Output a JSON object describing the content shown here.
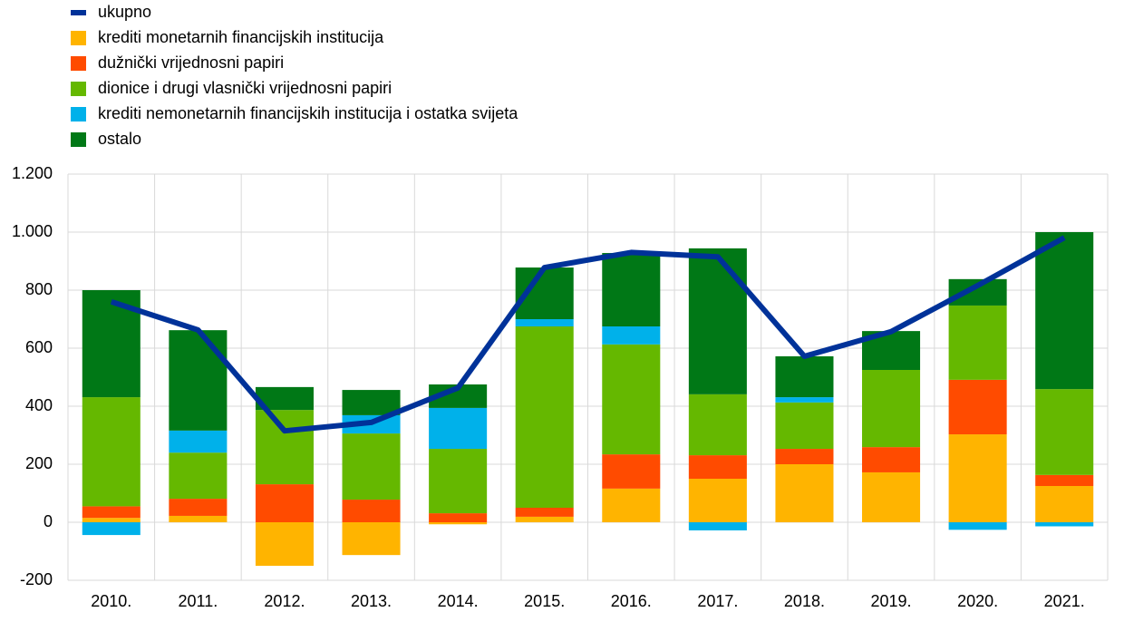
{
  "chart_data": {
    "type": "bar",
    "stacked": true,
    "grid": true,
    "legend": "top-left",
    "categories": [
      "2010.",
      "2011.",
      "2012.",
      "2013.",
      "2014.",
      "2015.",
      "2016.",
      "2017.",
      "2018.",
      "2019.",
      "2020.",
      "2021."
    ],
    "ylim": [
      -200,
      1200
    ],
    "yticks": [
      -200,
      0,
      200,
      400,
      600,
      800,
      {
        "value": 1000,
        "label": "1.000"
      },
      {
        "value": 1200,
        "label": "1.200"
      }
    ],
    "series": [
      {
        "name": "ukupno",
        "type": "line",
        "color": "#003299",
        "values": [
          760,
          663,
          315,
          344,
          463,
          878,
          930,
          915,
          572,
          657,
          816,
          981
        ]
      },
      {
        "name": "krediti monetarnih financijskih institucija",
        "color": "#FFB400",
        "values": [
          15,
          22,
          -150,
          -113,
          -7,
          19,
          116,
          150,
          200,
          172,
          303,
          125
        ]
      },
      {
        "name": "dužnički vrijednosni papiri",
        "color": "#FF4B00",
        "values": [
          40,
          59,
          131,
          78,
          31,
          31,
          118,
          81,
          53,
          87,
          188,
          38
        ]
      },
      {
        "name": "dionice i drugi vlasnički vrijednosni papiri",
        "color": "#65B800",
        "values": [
          376,
          159,
          256,
          228,
          222,
          625,
          379,
          210,
          160,
          266,
          256,
          296
        ]
      },
      {
        "name": "krediti nemonetarnih financijskih institucija i ostatka svijeta",
        "color": "#00B1EA",
        "values": [
          -44,
          76,
          0,
          63,
          141,
          25,
          62,
          -28,
          18,
          0,
          -26,
          -14
        ]
      },
      {
        "name": "ostalo",
        "color": "#007816",
        "values": [
          369,
          346,
          79,
          87,
          81,
          178,
          253,
          503,
          141,
          134,
          91,
          541
        ]
      }
    ]
  }
}
